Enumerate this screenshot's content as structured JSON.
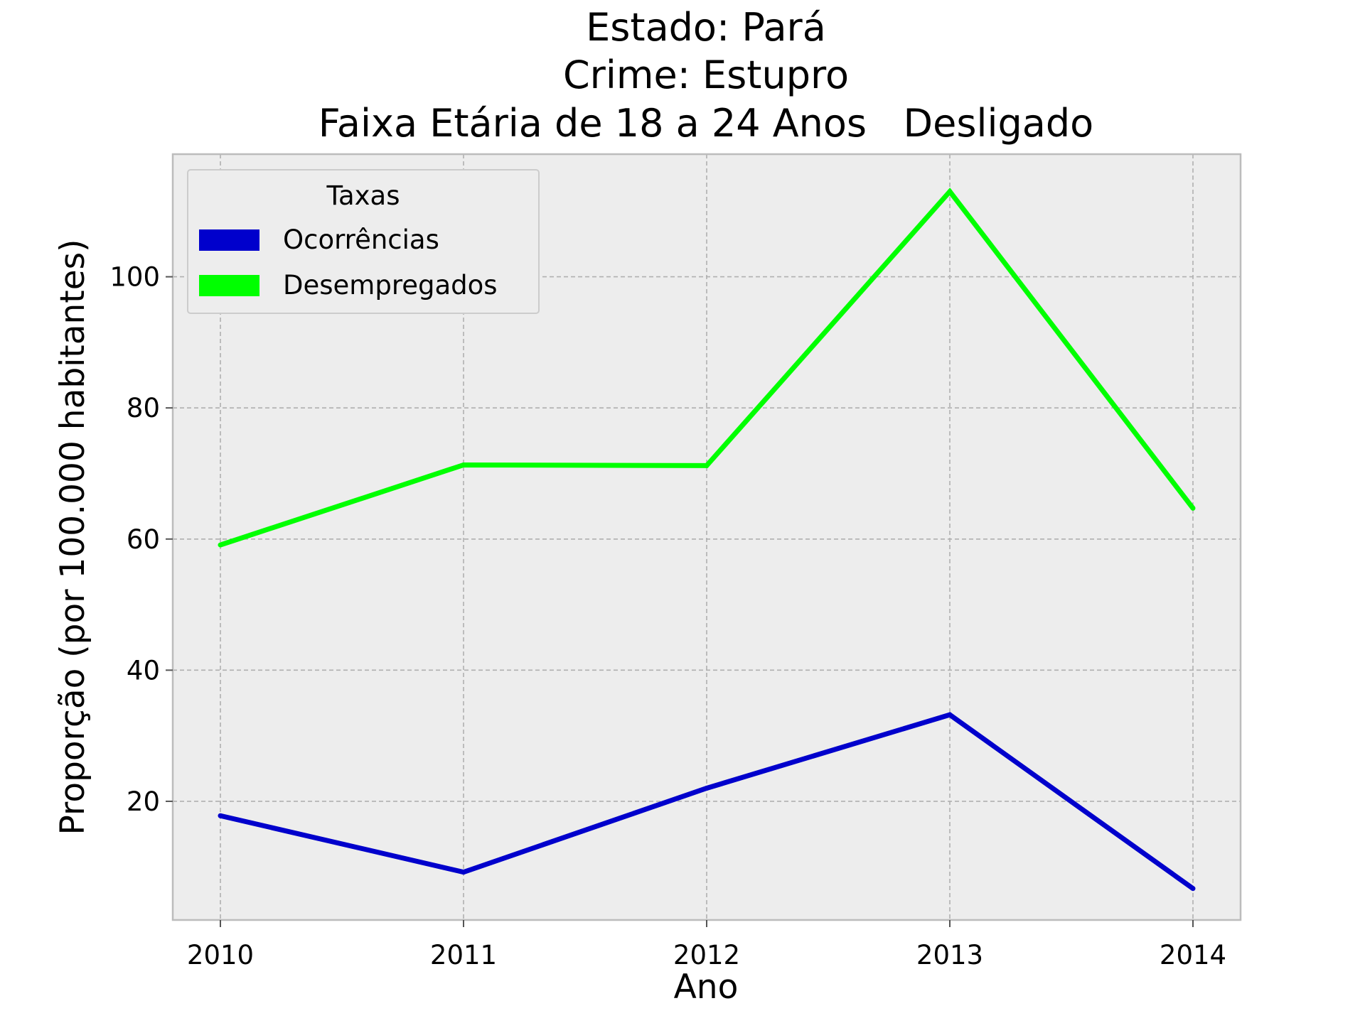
{
  "chart_data": {
    "type": "line",
    "title_lines": [
      "Estado: Pará",
      "Crime: Estupro",
      "Faixa Etária de 18 a 24 Anos   Desligado"
    ],
    "xlabel": "Ano",
    "ylabel": "Proporção (por 100.000 habitantes)",
    "x": [
      2010,
      2011,
      2012,
      2013,
      2014
    ],
    "x_ticks": [
      "2010",
      "2011",
      "2012",
      "2013",
      "2014"
    ],
    "y_ticks": [
      "20",
      "40",
      "60",
      "80",
      "100"
    ],
    "ylim": [
      1.9,
      118.7
    ],
    "grid": true,
    "legend": {
      "title": "Taxas",
      "placement": "top-left"
    },
    "series": [
      {
        "name": "Ocorrências",
        "color": "#0000cc",
        "values": [
          17.8,
          9.2,
          22.0,
          33.2,
          6.7
        ]
      },
      {
        "name": "Desempregados",
        "color": "#00ff00",
        "values": [
          59.1,
          71.3,
          71.2,
          113.0,
          64.7
        ]
      }
    ],
    "colors": {
      "plot_background": "#ededed",
      "frame": "#bcbcbc",
      "grid": "#b0b0b0"
    }
  }
}
